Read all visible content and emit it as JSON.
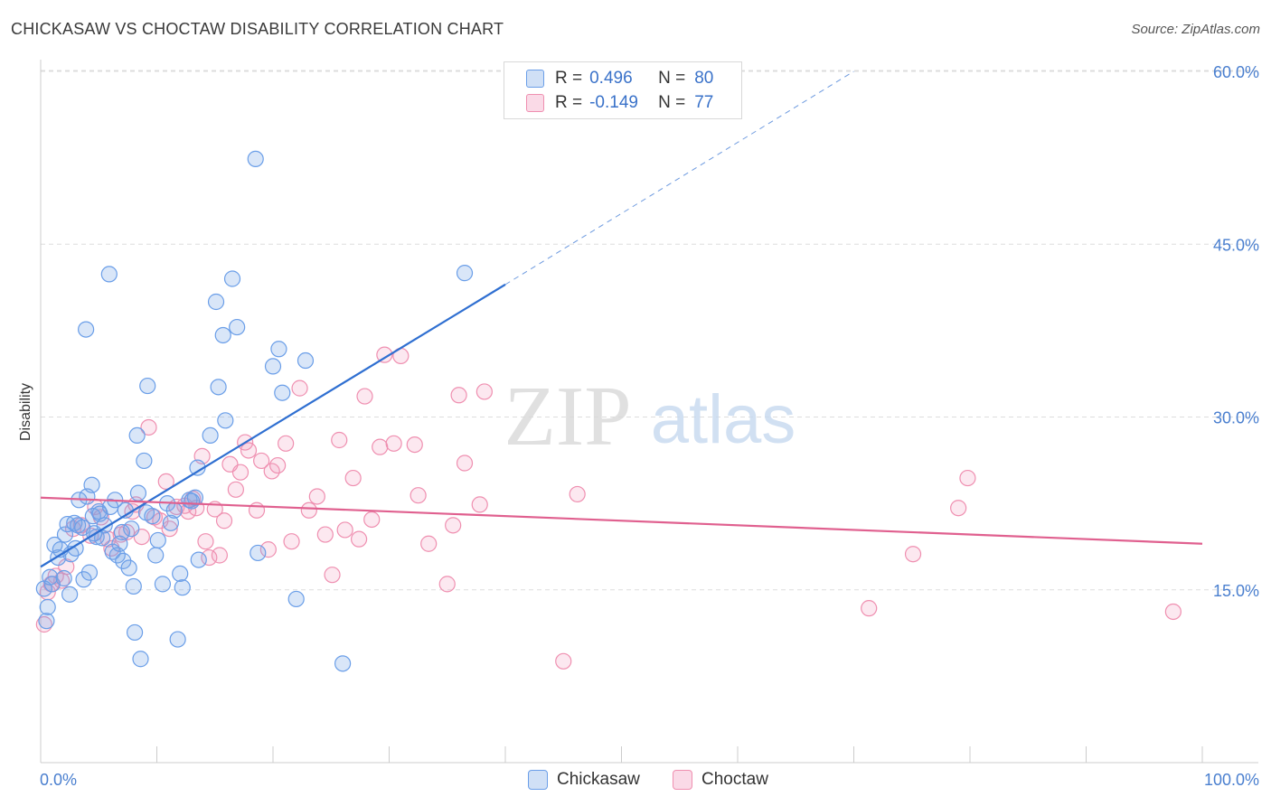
{
  "header": {
    "title": "CHICKASAW VS CHOCTAW DISABILITY CORRELATION CHART",
    "source": "Source: ZipAtlas.com"
  },
  "watermark": {
    "zip": "ZIP",
    "atlas": "atlas"
  },
  "legend_top": {
    "rows": [
      {
        "r_label": "R =",
        "r_value": "0.496",
        "n_label": "N =",
        "n_value": "80",
        "color": "#6a9ee8"
      },
      {
        "r_label": "R =",
        "r_value": "-0.149",
        "n_label": "N =",
        "n_value": "77",
        "color": "#ef8fb0"
      }
    ]
  },
  "legend_bottom": {
    "items": [
      {
        "label": "Chickasaw",
        "color": "#6a9ee8"
      },
      {
        "label": "Choctaw",
        "color": "#ef8fb0"
      }
    ]
  },
  "colors": {
    "chickasaw_fill": "rgba(120,165,230,0.28)",
    "chickasaw_stroke": "#6a9ee8",
    "chickasaw_line": "#2f6fd1",
    "choctaw_fill": "rgba(240,150,185,0.22)",
    "choctaw_stroke": "#ef8fb0",
    "choctaw_line": "#e0608f",
    "grid": "#dddddd",
    "tick_label": "#4a7fcf"
  },
  "chart_data": {
    "type": "scatter",
    "title": "CHICKASAW VS CHOCTAW DISABILITY CORRELATION CHART",
    "xlabel": "",
    "ylabel": "Disability",
    "xlim": [
      0,
      100
    ],
    "ylim": [
      0,
      62
    ],
    "x_tick_labels": [
      "0.0%",
      "100.0%"
    ],
    "y_ticks": [
      15,
      30,
      45,
      60
    ],
    "y_tick_labels": [
      "15.0%",
      "30.0%",
      "45.0%",
      "60.0%"
    ],
    "grid": true,
    "legend_position": "top-center",
    "series": [
      {
        "name": "Chickasaw",
        "r": 0.496,
        "n": 80,
        "trend": {
          "x0": 0,
          "y0": 17.0,
          "x1": 40,
          "y1": 41.5,
          "dash_to_x": 70,
          "dash_to_y": 60.0
        },
        "points": [
          [
            0.3,
            15.1
          ],
          [
            0.5,
            12.3
          ],
          [
            0.6,
            13.5
          ],
          [
            0.8,
            16.1
          ],
          [
            1.0,
            15.5
          ],
          [
            1.2,
            18.9
          ],
          [
            1.5,
            17.8
          ],
          [
            1.7,
            18.5
          ],
          [
            2.0,
            16.0
          ],
          [
            2.1,
            19.8
          ],
          [
            2.3,
            20.7
          ],
          [
            2.5,
            14.6
          ],
          [
            2.6,
            18.1
          ],
          [
            2.9,
            20.8
          ],
          [
            3.0,
            18.6
          ],
          [
            3.2,
            20.6
          ],
          [
            3.3,
            22.8
          ],
          [
            3.6,
            20.4
          ],
          [
            3.7,
            15.9
          ],
          [
            3.9,
            37.6
          ],
          [
            4.0,
            23.1
          ],
          [
            4.2,
            16.5
          ],
          [
            4.4,
            24.1
          ],
          [
            4.5,
            21.4
          ],
          [
            4.8,
            19.6
          ],
          [
            5.0,
            21.8
          ],
          [
            5.1,
            21.6
          ],
          [
            5.3,
            19.5
          ],
          [
            5.5,
            20.6
          ],
          [
            5.9,
            42.4
          ],
          [
            6.0,
            22.2
          ],
          [
            6.2,
            18.3
          ],
          [
            6.4,
            22.8
          ],
          [
            6.6,
            18.0
          ],
          [
            6.8,
            19.0
          ],
          [
            7.1,
            17.5
          ],
          [
            7.3,
            21.9
          ],
          [
            7.6,
            16.9
          ],
          [
            7.8,
            20.3
          ],
          [
            8.0,
            15.3
          ],
          [
            8.1,
            11.3
          ],
          [
            8.3,
            28.4
          ],
          [
            8.4,
            23.4
          ],
          [
            8.6,
            9.0
          ],
          [
            8.9,
            26.2
          ],
          [
            9.1,
            21.7
          ],
          [
            9.2,
            32.7
          ],
          [
            9.6,
            21.4
          ],
          [
            9.9,
            18.0
          ],
          [
            10.1,
            19.3
          ],
          [
            10.5,
            15.5
          ],
          [
            10.9,
            22.5
          ],
          [
            11.2,
            20.8
          ],
          [
            11.5,
            21.9
          ],
          [
            11.8,
            10.7
          ],
          [
            12.0,
            16.4
          ],
          [
            12.2,
            15.2
          ],
          [
            12.8,
            22.8
          ],
          [
            13.3,
            23.0
          ],
          [
            13.5,
            25.6
          ],
          [
            13.6,
            17.6
          ],
          [
            14.6,
            28.4
          ],
          [
            15.1,
            40.0
          ],
          [
            15.3,
            32.6
          ],
          [
            15.7,
            37.1
          ],
          [
            15.9,
            29.7
          ],
          [
            16.5,
            42.0
          ],
          [
            16.9,
            37.8
          ],
          [
            18.5,
            52.4
          ],
          [
            18.7,
            18.2
          ],
          [
            20.0,
            34.4
          ],
          [
            20.5,
            35.9
          ],
          [
            20.8,
            32.1
          ],
          [
            22.0,
            14.2
          ],
          [
            22.8,
            34.9
          ],
          [
            26.0,
            8.6
          ],
          [
            36.5,
            42.5
          ],
          [
            4.6,
            19.9
          ],
          [
            7.0,
            20.0
          ],
          [
            13.0,
            22.7
          ]
        ]
      },
      {
        "name": "Choctaw",
        "r": -0.149,
        "n": 77,
        "trend": {
          "x0": 0,
          "y0": 23.0,
          "x1": 100,
          "y1": 19.0
        },
        "points": [
          [
            0.3,
            12.0
          ],
          [
            0.6,
            14.8
          ],
          [
            0.9,
            15.5
          ],
          [
            1.3,
            16.2
          ],
          [
            1.8,
            15.8
          ],
          [
            2.2,
            17.0
          ],
          [
            2.8,
            20.3
          ],
          [
            3.5,
            20.6
          ],
          [
            4.3,
            19.7
          ],
          [
            4.7,
            22.2
          ],
          [
            5.2,
            21.3
          ],
          [
            5.8,
            19.4
          ],
          [
            6.1,
            18.6
          ],
          [
            6.9,
            19.8
          ],
          [
            7.4,
            20.0
          ],
          [
            7.9,
            21.8
          ],
          [
            8.2,
            22.4
          ],
          [
            8.7,
            19.6
          ],
          [
            9.3,
            29.1
          ],
          [
            9.8,
            21.3
          ],
          [
            10.3,
            21.0
          ],
          [
            10.8,
            24.4
          ],
          [
            11.1,
            20.3
          ],
          [
            11.7,
            22.2
          ],
          [
            12.4,
            22.3
          ],
          [
            12.7,
            21.8
          ],
          [
            13.1,
            22.9
          ],
          [
            13.4,
            22.1
          ],
          [
            13.9,
            26.6
          ],
          [
            14.2,
            19.2
          ],
          [
            14.5,
            17.8
          ],
          [
            15.0,
            22.0
          ],
          [
            15.4,
            18.0
          ],
          [
            15.8,
            21.0
          ],
          [
            16.3,
            25.9
          ],
          [
            16.8,
            23.7
          ],
          [
            17.2,
            25.2
          ],
          [
            17.6,
            27.8
          ],
          [
            17.9,
            27.1
          ],
          [
            18.6,
            21.9
          ],
          [
            19.0,
            26.2
          ],
          [
            19.6,
            18.5
          ],
          [
            19.9,
            25.3
          ],
          [
            20.4,
            25.8
          ],
          [
            21.1,
            27.7
          ],
          [
            21.6,
            19.2
          ],
          [
            22.3,
            32.5
          ],
          [
            23.1,
            21.9
          ],
          [
            23.8,
            23.1
          ],
          [
            24.5,
            19.8
          ],
          [
            25.1,
            16.3
          ],
          [
            25.7,
            28.0
          ],
          [
            26.2,
            20.2
          ],
          [
            26.9,
            24.7
          ],
          [
            27.4,
            19.4
          ],
          [
            27.9,
            31.8
          ],
          [
            28.5,
            21.1
          ],
          [
            29.2,
            27.4
          ],
          [
            29.6,
            35.4
          ],
          [
            30.4,
            27.7
          ],
          [
            31.0,
            35.3
          ],
          [
            32.2,
            27.6
          ],
          [
            32.5,
            23.2
          ],
          [
            33.4,
            19.0
          ],
          [
            35.0,
            15.5
          ],
          [
            35.5,
            20.6
          ],
          [
            36.0,
            31.9
          ],
          [
            36.5,
            26.0
          ],
          [
            37.8,
            22.4
          ],
          [
            38.2,
            32.2
          ],
          [
            45.0,
            8.8
          ],
          [
            46.2,
            23.3
          ],
          [
            71.3,
            13.4
          ],
          [
            75.1,
            18.1
          ],
          [
            79.0,
            22.1
          ],
          [
            79.8,
            24.7
          ],
          [
            97.5,
            13.1
          ]
        ]
      }
    ]
  }
}
